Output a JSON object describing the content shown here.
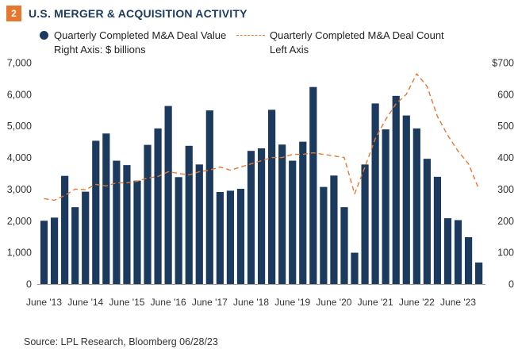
{
  "badge": "2",
  "title": "U.S. MERGER & ACQUISITION ACTIVITY",
  "legend": {
    "bar_line1": "Quarterly Completed M&A Deal Value",
    "bar_line2": "Right Axis: $ billions",
    "line_line1": "Quarterly Completed M&A Deal Count",
    "line_line2": "Left Axis"
  },
  "source": "Source: LPL Research, Bloomberg  06/28/23",
  "colors": {
    "bar": "#1b3a5e",
    "line": "#e8772e",
    "badge": "#e8772e",
    "grid": "#cfcfcf"
  },
  "chart_data": {
    "type": "bar",
    "title": "U.S. MERGER & ACQUISITION ACTIVITY",
    "x_tick_labels": [
      "June '13",
      "June '14",
      "June '15",
      "June '16",
      "June '17",
      "June '18",
      "June '19",
      "June '20",
      "June '21",
      "June '22",
      "June '23"
    ],
    "left_axis": {
      "ticks": [
        "0",
        "1,000",
        "2,000",
        "3,000",
        "4,000",
        "5,000",
        "6,000",
        "7,000"
      ],
      "ylim": [
        0,
        7000
      ]
    },
    "right_axis": {
      "ticks": [
        "0",
        "100",
        "200",
        "300",
        "400",
        "500",
        "600",
        "$700"
      ],
      "ylim": [
        0,
        700
      ]
    },
    "grid": false,
    "series": [
      {
        "name": "Quarterly Completed M&A Deal Value",
        "kind": "bar",
        "axis": "right",
        "values": [
          200,
          210,
          342,
          243,
          292,
          453,
          476,
          390,
          376,
          327,
          440,
          492,
          563,
          338,
          437,
          378,
          549,
          291,
          295,
          301,
          421,
          429,
          551,
          441,
          390,
          450,
          623,
          307,
          343,
          243,
          99,
          378,
          571,
          489,
          595,
          533,
          492,
          396,
          339,
          208,
          202,
          148,
          68
        ]
      },
      {
        "name": "Quarterly Completed M&A Deal Count",
        "kind": "line",
        "axis": "left",
        "values": [
          2700,
          2650,
          2800,
          3000,
          2980,
          3150,
          3100,
          3200,
          3200,
          3250,
          3350,
          3400,
          3550,
          3500,
          3450,
          3550,
          3600,
          3700,
          3600,
          3700,
          3800,
          3900,
          4000,
          4000,
          4100,
          4100,
          4150,
          4100,
          4050,
          4000,
          2850,
          3700,
          4600,
          5200,
          5700,
          6000,
          6650,
          6250,
          5300,
          4700,
          4200,
          3800,
          3000
        ]
      }
    ]
  }
}
